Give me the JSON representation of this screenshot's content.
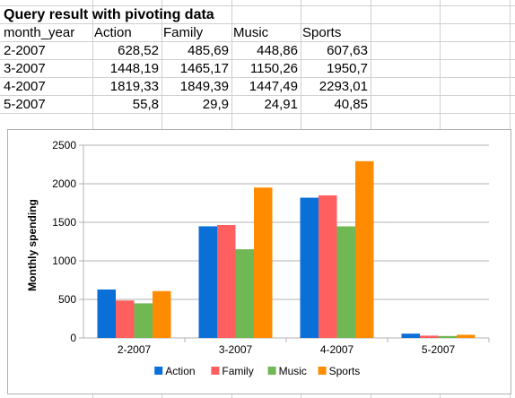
{
  "sheet": {
    "title": "Query result with pivoting data",
    "headers": [
      "month_year",
      "Action",
      "Family",
      "Music",
      "Sports"
    ],
    "rows": [
      [
        "2-2007",
        "628,52",
        "485,69",
        "448,86",
        "607,63"
      ],
      [
        "3-2007",
        "1448,19",
        "1465,17",
        "1150,26",
        "1950,7"
      ],
      [
        "4-2007",
        "1819,33",
        "1849,39",
        "1447,49",
        "2293,01"
      ],
      [
        "5-2007",
        "55,8",
        "29,9",
        "24,91",
        "40,85"
      ]
    ]
  },
  "chart_data": {
    "type": "bar",
    "ylabel": "Monthly spending",
    "xlabel": "",
    "categories": [
      "2-2007",
      "3-2007",
      "4-2007",
      "5-2007"
    ],
    "series": [
      {
        "name": "Action",
        "color": "#0a6fd6",
        "values": [
          628.52,
          1448.19,
          1819.33,
          55.8
        ]
      },
      {
        "name": "Family",
        "color": "#ff5f5f",
        "values": [
          485.69,
          1465.17,
          1849.39,
          29.9
        ]
      },
      {
        "name": "Music",
        "color": "#70b853",
        "values": [
          448.86,
          1150.26,
          1447.49,
          24.91
        ]
      },
      {
        "name": "Sports",
        "color": "#ff8c00",
        "values": [
          607.63,
          1950.7,
          2293.01,
          40.85
        ]
      }
    ],
    "ylim": [
      0,
      2500
    ],
    "yticks": [
      "0",
      "500",
      "1000",
      "1500",
      "2000",
      "2500"
    ],
    "grid": true,
    "legend": "bottom"
  }
}
